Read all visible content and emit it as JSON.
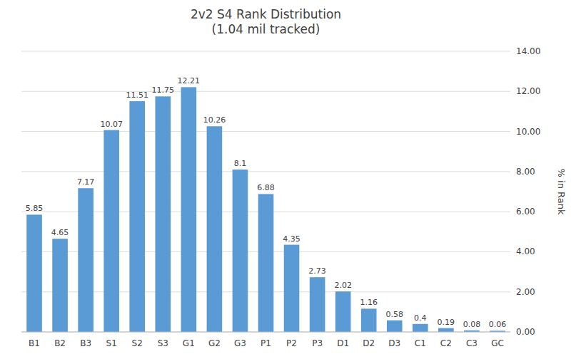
{
  "chart_data": {
    "type": "bar",
    "title": "2v2 S4 Rank Distribution\n(1.04 mil tracked)",
    "categories": [
      "B1",
      "B2",
      "B3",
      "S1",
      "S2",
      "S3",
      "G1",
      "G2",
      "G3",
      "P1",
      "P2",
      "P3",
      "D1",
      "D2",
      "D3",
      "C1",
      "C2",
      "C3",
      "GC"
    ],
    "values": [
      5.85,
      4.65,
      7.17,
      10.07,
      11.51,
      11.75,
      12.21,
      10.26,
      8.1,
      6.88,
      4.35,
      2.73,
      2.02,
      1.16,
      0.58,
      0.4,
      0.19,
      0.08,
      0.06
    ],
    "color": "#5B9BD5",
    "ylabel": "% in Rank",
    "ylim": [
      0,
      14.0
    ],
    "yticks": [
      {
        "value": 0,
        "label": "0.00"
      },
      {
        "value": 2,
        "label": "2.00"
      },
      {
        "value": 4,
        "label": "4.00"
      },
      {
        "value": 6,
        "label": "6.00"
      },
      {
        "value": 8,
        "label": "8.00"
      },
      {
        "value": 10,
        "label": "10.00"
      },
      {
        "value": 12,
        "label": "12.00"
      },
      {
        "value": 14,
        "label": "14.00"
      }
    ],
    "grid": true,
    "data_labels": true
  }
}
